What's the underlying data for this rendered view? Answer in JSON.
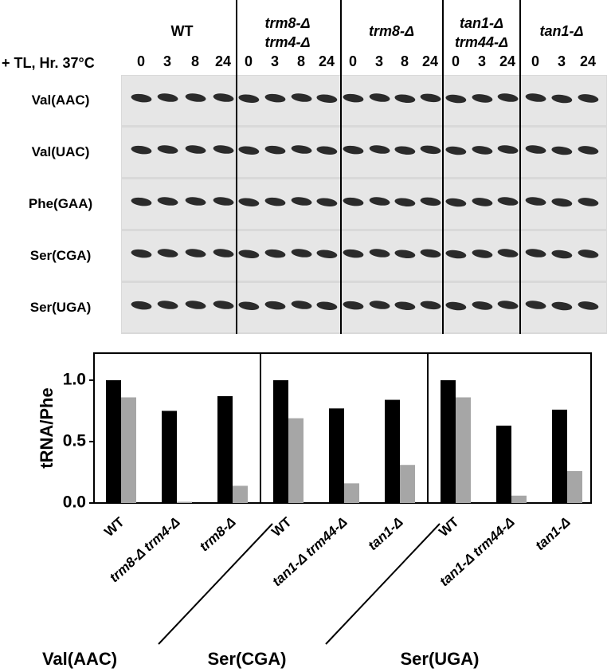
{
  "blot": {
    "time_label": "+ TL, Hr. 37°C",
    "groups": [
      {
        "label": [
          "WT"
        ],
        "times": [
          "0",
          "3",
          "8",
          "24"
        ]
      },
      {
        "label": [
          "trm8-Δ",
          "trm4-Δ"
        ],
        "times": [
          "0",
          "3",
          "8",
          "24"
        ]
      },
      {
        "label": [
          "trm8-Δ"
        ],
        "times": [
          "0",
          "3",
          "8",
          "24"
        ]
      },
      {
        "label": [
          "tan1-Δ",
          "trm44-Δ"
        ],
        "times": [
          "0",
          "3",
          "24"
        ]
      },
      {
        "label": [
          "tan1-Δ"
        ],
        "times": [
          "0",
          "3",
          "24"
        ]
      }
    ],
    "rows": [
      "Val(AAC)",
      "Val(UAC)",
      "Phe(GAA)",
      "Ser(CGA)",
      "Ser(UGA)"
    ]
  },
  "chart_data": {
    "type": "bar",
    "y_label": "tRNA/Phe",
    "categories": [
      "WT",
      "trm8-Δ trm4-Δ",
      "trm8-Δ",
      "WT",
      "tan1-Δ trm44-Δ",
      "tan1-Δ",
      "WT",
      "tan1-Δ trm44-Δ",
      "tan1-Δ"
    ],
    "groups": [
      "Val(AAC)",
      "Ser(CGA)",
      "Ser(UGA)"
    ],
    "series": [
      {
        "color": "#000000",
        "values": [
          1.0,
          0.75,
          0.87,
          1.0,
          0.77,
          0.84,
          1.0,
          0.63,
          0.76
        ]
      },
      {
        "color": "#a6a6a6",
        "values": [
          0.86,
          0.01,
          0.14,
          0.69,
          0.16,
          0.31,
          0.86,
          0.06,
          0.26
        ]
      }
    ],
    "ylim": [
      0,
      1.22
    ],
    "yticks": [
      {
        "value": 0,
        "label": "0.0"
      },
      0.5,
      {
        "value": 1,
        "label": "1.0"
      }
    ]
  }
}
